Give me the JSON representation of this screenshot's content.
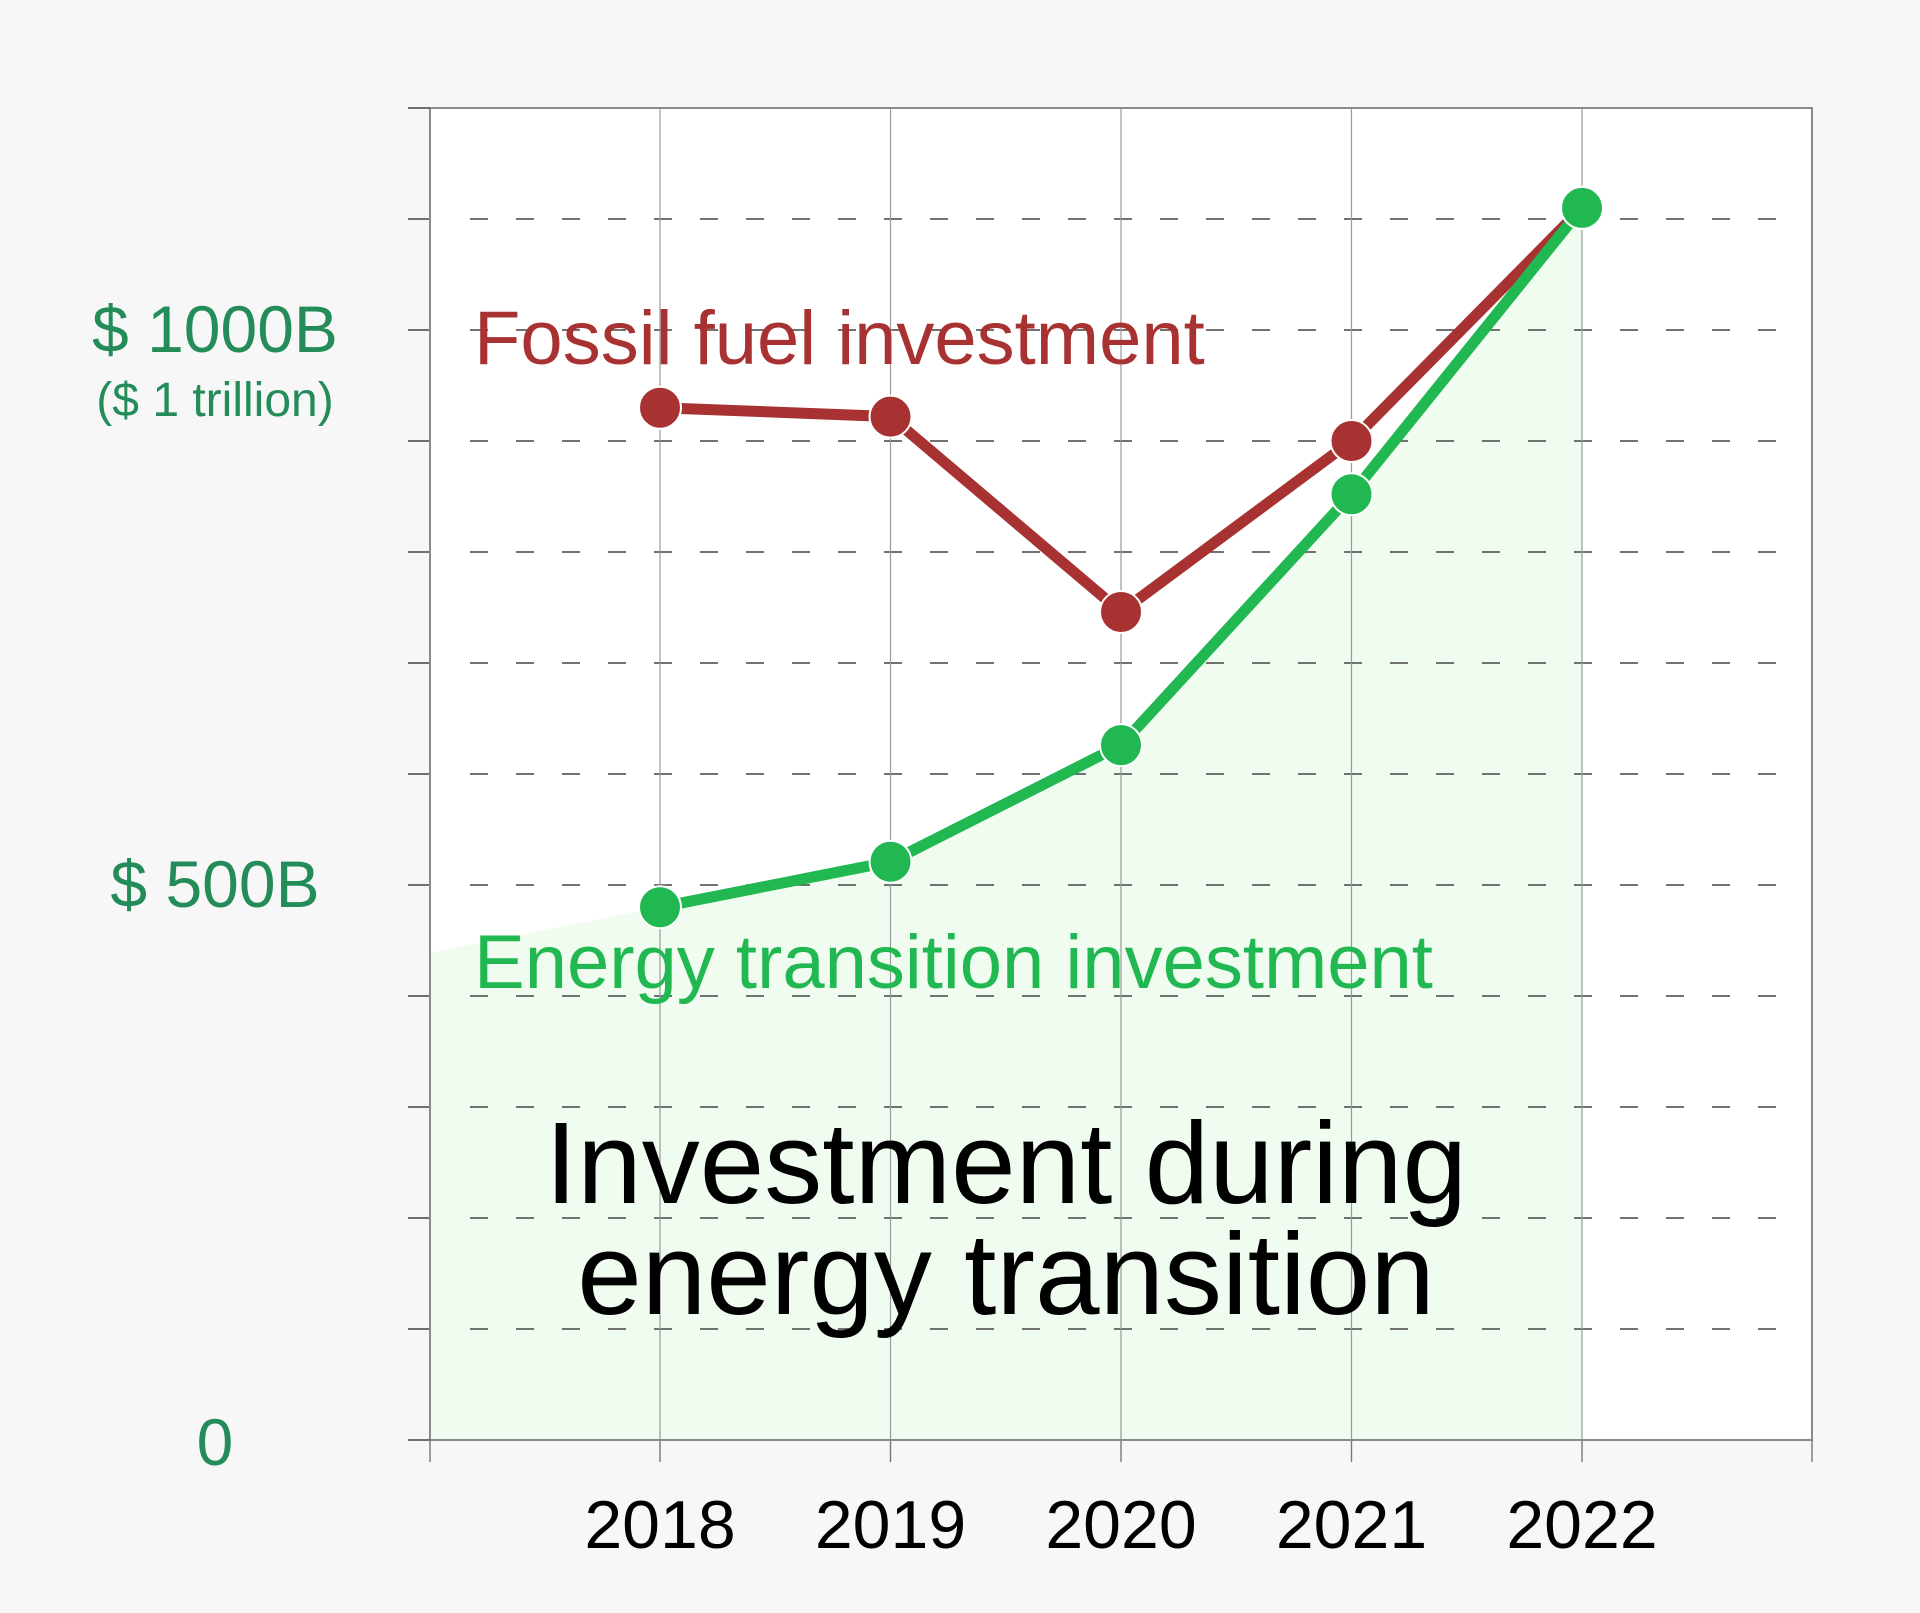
{
  "chart_data": {
    "type": "line",
    "title": "Investment during energy transition",
    "title_lines": [
      "Investment during",
      "energy transition"
    ],
    "x": [
      "2018",
      "2019",
      "2020",
      "2021",
      "2022"
    ],
    "series": [
      {
        "name": "Fossil fuel investment",
        "color": "#a83232",
        "values": [
          930,
          922,
          746,
          900,
          1110
        ]
      },
      {
        "name": "Energy transition investment",
        "color": "#21b852",
        "values": [
          480,
          521,
          626,
          852,
          1110
        ]
      }
    ],
    "ylim": [
      0,
      1200
    ],
    "y_tick_labels": [
      {
        "value": 1000,
        "label": "$ 1000B",
        "sublabel": "($ 1 trillion)"
      },
      {
        "value": 500,
        "label": "$ 500B"
      },
      {
        "value": 0,
        "label": "0"
      }
    ],
    "grid": true,
    "y_label_color": "#238c58",
    "area_fill_color": "#f0fcf0"
  }
}
